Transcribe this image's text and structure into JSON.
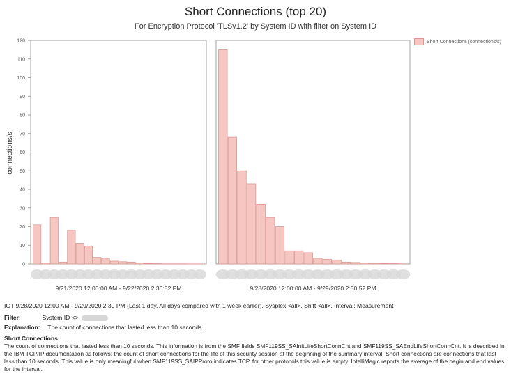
{
  "chart_data": {
    "type": "bar",
    "title": "Short Connections (top 20)",
    "subtitle": "For Encryption Protocol 'TLSv1.2' by System ID with filter on System ID",
    "ylabel": "connections/s",
    "ylim": [
      0,
      120
    ],
    "yticks": [
      0,
      10,
      20,
      30,
      40,
      50,
      60,
      70,
      80,
      90,
      100,
      110,
      120
    ],
    "legend": {
      "label": "Short Connections (connections/s)",
      "position": "top-right",
      "color": "#f6c7c2"
    },
    "grid": false,
    "panels": [
      {
        "xlabel": "9/21/2020 12:00:00 AM - 9/22/2020 2:30:52 PM",
        "values": [
          21,
          0.5,
          25,
          1,
          18,
          11,
          9.5,
          3.5,
          3,
          1.5,
          1.2,
          1,
          0.5,
          0.3,
          0.2,
          0.1,
          0.1,
          0.1,
          0.05,
          0.05
        ]
      },
      {
        "xlabel": "9/28/2020 12:00:00 AM - 9/29/2020 2:30:52 PM",
        "values": [
          115,
          68,
          50,
          43,
          32,
          25,
          20,
          7,
          7,
          6,
          3,
          2.5,
          2,
          1,
          0.8,
          0.5,
          0.4,
          0.3,
          0.2,
          0.1
        ]
      }
    ]
  },
  "info": {
    "period": "IGT 9/28/2020 12:00 AM - 9/29/2020 2:30 PM (Last 1 day. All days compared with 1 week earlier). Sysplex <all>, Shift <all>, Interval: Measurement",
    "filter_label": "Filter:",
    "filter_value": "System ID <>",
    "explanation_label": "Explanation:",
    "explanation_value": "The count of connections that lasted less than 10 seconds.",
    "section_title": "Short Connections",
    "section_body": "The count of connections that lasted less than 10 seconds. This information is from the SMF fields SMF119SS_SAInitLifeShortConnCnt and SMF119SS_SAEndLifeShortConnCnt. It is described in the IBM TCP/IP documentation as follows: the count of short connections for the life of this security session at the beginning of the summary interval. Short connections are connections that last less than 10 seconds. This value is only meaningful when SMF119SS_SAIPProto indicates TCP, for other protocols this value is empty. IntelliMagic reports the average of the begin and end values for the interval."
  }
}
